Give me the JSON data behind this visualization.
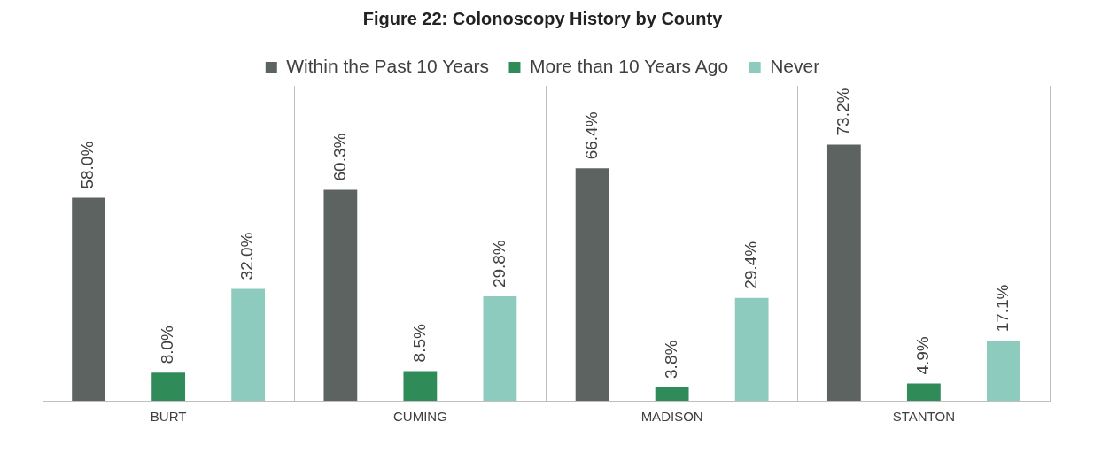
{
  "chart_data": {
    "type": "bar",
    "title": "Figure 22: Colonoscopy History by County",
    "categories": [
      "BURT",
      "CUMING",
      "MADISON",
      "STANTON"
    ],
    "series": [
      {
        "name": "Within the Past 10 Years",
        "color": "#5d6361",
        "values": [
          58.0,
          60.3,
          66.4,
          73.2
        ],
        "value_labels": [
          "58.0%",
          "60.3%",
          "66.4%",
          "73.2%"
        ]
      },
      {
        "name": "More than 10 Years Ago",
        "color": "#2f8c58",
        "values": [
          8.0,
          8.5,
          3.8,
          4.9
        ],
        "value_labels": [
          "8.0%",
          "8.5%",
          "3.8%",
          "4.9%"
        ]
      },
      {
        "name": "Never",
        "color": "#8ccbbd",
        "values": [
          32.0,
          29.8,
          29.4,
          17.1
        ],
        "value_labels": [
          "32.0%",
          "29.8%",
          "29.4%",
          "17.1%"
        ]
      }
    ],
    "legend": "top",
    "grid": "x"
  }
}
